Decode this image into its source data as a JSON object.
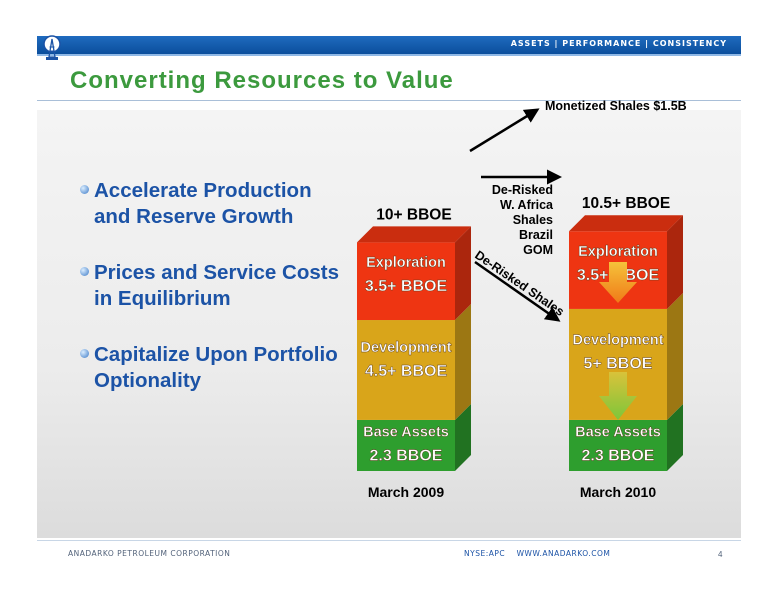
{
  "header": {
    "tagline": "ASSETS | PERFORMANCE | CONSISTENCY",
    "logo_icon": "derrick-icon"
  },
  "slide": {
    "title": "Converting Resources to Value"
  },
  "bullets": [
    "Accelerate Production and Reserve Growth",
    "Prices and Service Costs in Equilibrium",
    "Capitalize Upon Portfolio Optionality"
  ],
  "chart_data": {
    "type": "bar",
    "stacked": true,
    "categories": [
      "March 2009",
      "March 2010"
    ],
    "totals": [
      "10+ BBOE",
      "10.5+ BBOE"
    ],
    "segments": [
      {
        "name": "Base Assets",
        "labels": [
          "2.3 BBOE",
          "2.3 BBOE"
        ],
        "values": [
          2.3,
          2.3
        ],
        "color": "#2e9e2e"
      },
      {
        "name": "Development",
        "labels": [
          "4.5+ BBOE",
          "5+ BBOE"
        ],
        "values": [
          4.5,
          5
        ],
        "color": "#d9a51a"
      },
      {
        "name": "Exploration",
        "labels": [
          "3.5+ BBOE",
          "3.5+ BBOE"
        ],
        "values": [
          3.5,
          3.5
        ],
        "color": "#ee3512"
      }
    ],
    "annotations": {
      "monetized": "Monetized Shales $1.5B",
      "derisked_list": [
        "De-Risked",
        "W. Africa",
        "Shales",
        "Brazil",
        "GOM"
      ],
      "derisked_arrow": "De-Risked Shales"
    }
  },
  "footer": {
    "company": "ANADARKO PETROLEUM CORPORATION",
    "ticker_web": "NYSE:APC    WWW.ANADARKO.COM",
    "page": "4"
  }
}
